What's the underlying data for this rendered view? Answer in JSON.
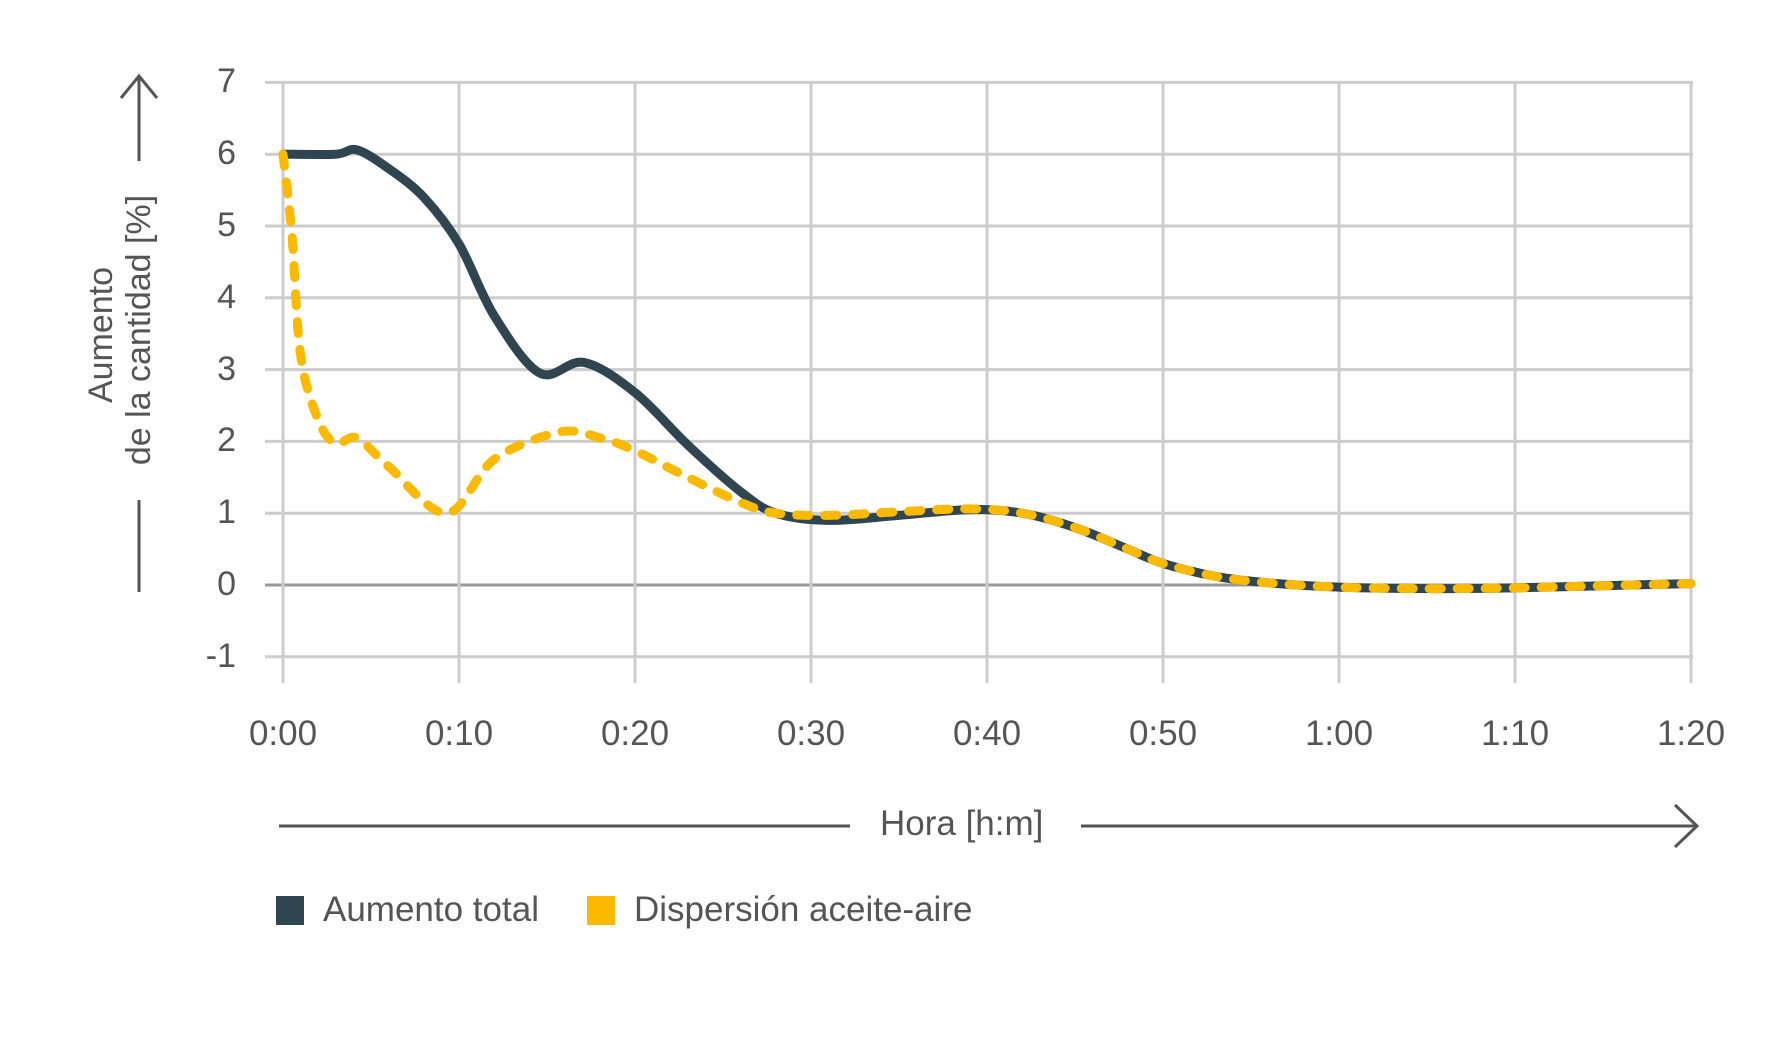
{
  "chart_data": {
    "type": "line",
    "title": "",
    "xlabel": "Hora [h:m]",
    "ylabel_lines": [
      "Aumento",
      "de la cantidad [%]"
    ],
    "ylabel": "Aumento de la cantidad [%]",
    "x_ticks": [
      "0:00",
      "0:10",
      "0:20",
      "0:30",
      "0:40",
      "0:50",
      "1:00",
      "1:10",
      "1:20"
    ],
    "y_ticks": [
      "7",
      "6",
      "5",
      "4",
      "3",
      "2",
      "1",
      "0",
      "-1"
    ],
    "xlim_minutes": [
      0,
      80
    ],
    "ylim": [
      -1,
      7
    ],
    "grid": true,
    "legend_position": "bottom-left",
    "series": [
      {
        "name": "Aumento total",
        "color": "#2f4651",
        "style": "solid",
        "x_minutes": [
          0,
          3,
          4.2,
          6,
          8,
          10,
          12,
          14.6,
          17.1,
          20,
          23,
          26,
          28,
          31,
          35,
          39,
          42,
          45,
          48,
          50,
          53,
          56,
          60,
          65,
          70,
          75,
          80
        ],
        "values": [
          6.0,
          6.0,
          6.06,
          5.8,
          5.4,
          4.75,
          3.75,
          2.95,
          3.1,
          2.68,
          1.95,
          1.3,
          1.0,
          0.9,
          0.97,
          1.05,
          1.0,
          0.8,
          0.5,
          0.3,
          0.12,
          0.03,
          -0.03,
          -0.05,
          -0.04,
          -0.01,
          0.02
        ]
      },
      {
        "name": "Dispersión aceite-aire",
        "color": "#fbb900",
        "style": "dashed",
        "x_minutes": [
          0,
          0.5,
          1,
          2,
          3,
          4.2,
          6,
          9.3,
          12,
          15.7,
          18,
          20,
          23,
          26,
          28,
          31,
          35,
          39,
          42,
          45,
          48,
          50,
          53,
          56,
          60,
          65,
          70,
          75,
          80
        ],
        "values": [
          6.0,
          4.9,
          3.2,
          2.3,
          1.97,
          2.05,
          1.65,
          1.0,
          1.75,
          2.13,
          2.05,
          1.87,
          1.5,
          1.15,
          1.0,
          0.97,
          1.02,
          1.06,
          1.0,
          0.8,
          0.5,
          0.3,
          0.12,
          0.03,
          -0.03,
          -0.05,
          -0.04,
          -0.01,
          0.02
        ]
      }
    ]
  },
  "colors": {
    "grid": "#cccccc",
    "zero_line": "#999999",
    "axis_arrow": "#555555",
    "text": "#555555"
  }
}
